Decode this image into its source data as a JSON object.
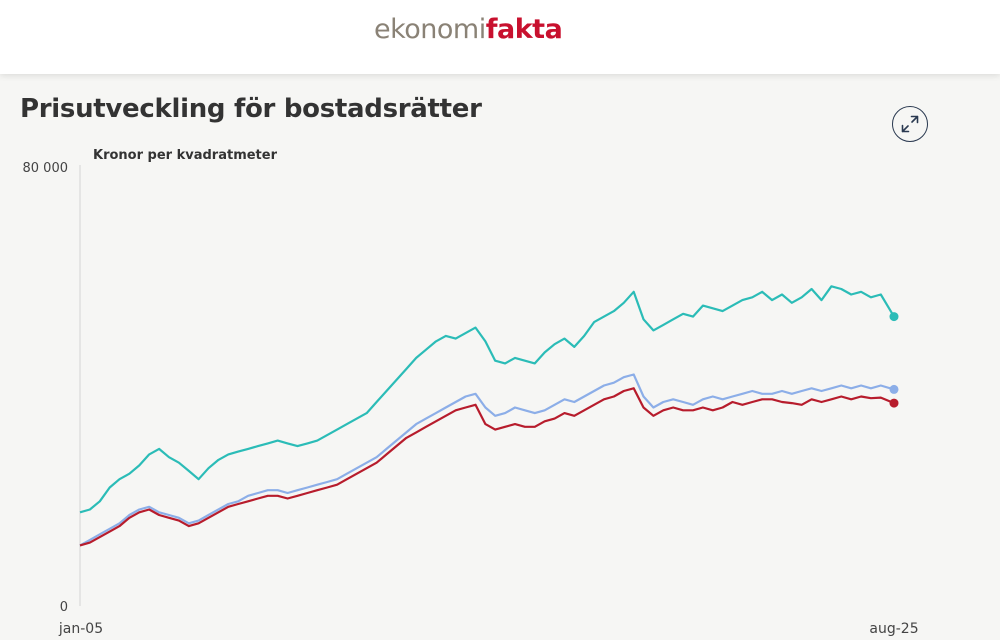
{
  "header": {
    "logo_part1": "ekonomi",
    "logo_part2": "fakta",
    "brand_color": "#c8102e",
    "logo_grey": "#8a8276"
  },
  "page": {
    "title": "Prisutveckling för bostadsrätter",
    "expand_icon": "expand-arrows-icon"
  },
  "chart_data": {
    "type": "line",
    "title": "Prisutveckling för bostadsrätter",
    "ylabel": "Kronor per kvadratmeter",
    "xlabel": "",
    "ylim": [
      0,
      80000
    ],
    "y_ticks": [
      "0",
      "80 000"
    ],
    "x_ticks": [
      "jan-05",
      "aug-25"
    ],
    "x_start": "2005-01",
    "x_end": "2025-08",
    "grid": false,
    "legend": "none",
    "series": [
      {
        "color": "#2bbcb7",
        "values": [
          [
            2005.0,
            17000
          ],
          [
            2005.25,
            17500
          ],
          [
            2005.5,
            19000
          ],
          [
            2005.75,
            21500
          ],
          [
            2006.0,
            23000
          ],
          [
            2006.25,
            24000
          ],
          [
            2006.5,
            25500
          ],
          [
            2006.75,
            27500
          ],
          [
            2007.0,
            28500
          ],
          [
            2007.25,
            27000
          ],
          [
            2007.5,
            26000
          ],
          [
            2007.75,
            24500
          ],
          [
            2008.0,
            23000
          ],
          [
            2008.25,
            25000
          ],
          [
            2008.5,
            26500
          ],
          [
            2008.75,
            27500
          ],
          [
            2009.0,
            28000
          ],
          [
            2009.25,
            28500
          ],
          [
            2009.5,
            29000
          ],
          [
            2009.75,
            29500
          ],
          [
            2010.0,
            30000
          ],
          [
            2010.25,
            29500
          ],
          [
            2010.5,
            29000
          ],
          [
            2010.75,
            29500
          ],
          [
            2011.0,
            30000
          ],
          [
            2011.25,
            31000
          ],
          [
            2011.5,
            32000
          ],
          [
            2011.75,
            33000
          ],
          [
            2012.0,
            34000
          ],
          [
            2012.25,
            35000
          ],
          [
            2012.5,
            37000
          ],
          [
            2012.75,
            39000
          ],
          [
            2013.0,
            41000
          ],
          [
            2013.25,
            43000
          ],
          [
            2013.5,
            45000
          ],
          [
            2013.75,
            46500
          ],
          [
            2014.0,
            48000
          ],
          [
            2014.25,
            49000
          ],
          [
            2014.5,
            48500
          ],
          [
            2014.75,
            49500
          ],
          [
            2015.0,
            50500
          ],
          [
            2015.25,
            48000
          ],
          [
            2015.5,
            44500
          ],
          [
            2015.75,
            44000
          ],
          [
            2016.0,
            45000
          ],
          [
            2016.25,
            44500
          ],
          [
            2016.5,
            44000
          ],
          [
            2016.75,
            46000
          ],
          [
            2017.0,
            47500
          ],
          [
            2017.25,
            48500
          ],
          [
            2017.5,
            47000
          ],
          [
            2017.75,
            49000
          ],
          [
            2018.0,
            51500
          ],
          [
            2018.25,
            52500
          ],
          [
            2018.5,
            53500
          ],
          [
            2018.75,
            55000
          ],
          [
            2019.0,
            57000
          ],
          [
            2019.25,
            52000
          ],
          [
            2019.5,
            50000
          ],
          [
            2019.75,
            51000
          ],
          [
            2020.0,
            52000
          ],
          [
            2020.25,
            53000
          ],
          [
            2020.5,
            52500
          ],
          [
            2020.75,
            54500
          ],
          [
            2021.0,
            54000
          ],
          [
            2021.25,
            53500
          ],
          [
            2021.5,
            54500
          ],
          [
            2021.75,
            55500
          ],
          [
            2022.0,
            56000
          ],
          [
            2022.25,
            57000
          ],
          [
            2022.5,
            55500
          ],
          [
            2022.75,
            56500
          ],
          [
            2023.0,
            55000
          ],
          [
            2023.25,
            56000
          ],
          [
            2023.5,
            57500
          ],
          [
            2023.75,
            55500
          ],
          [
            2024.0,
            58000
          ],
          [
            2024.25,
            57500
          ],
          [
            2024.5,
            56500
          ],
          [
            2024.75,
            57000
          ],
          [
            2025.0,
            56000
          ],
          [
            2025.25,
            56500
          ],
          [
            2025.583,
            52500
          ]
        ]
      },
      {
        "color": "#8caee8",
        "values": [
          [
            2005.0,
            11000
          ],
          [
            2005.25,
            12000
          ],
          [
            2005.5,
            13000
          ],
          [
            2005.75,
            14000
          ],
          [
            2006.0,
            15000
          ],
          [
            2006.25,
            16500
          ],
          [
            2006.5,
            17500
          ],
          [
            2006.75,
            18000
          ],
          [
            2007.0,
            17000
          ],
          [
            2007.25,
            16500
          ],
          [
            2007.5,
            16000
          ],
          [
            2007.75,
            15000
          ],
          [
            2008.0,
            15500
          ],
          [
            2008.25,
            16500
          ],
          [
            2008.5,
            17500
          ],
          [
            2008.75,
            18500
          ],
          [
            2009.0,
            19000
          ],
          [
            2009.25,
            20000
          ],
          [
            2009.5,
            20500
          ],
          [
            2009.75,
            21000
          ],
          [
            2010.0,
            21000
          ],
          [
            2010.25,
            20500
          ],
          [
            2010.5,
            21000
          ],
          [
            2010.75,
            21500
          ],
          [
            2011.0,
            22000
          ],
          [
            2011.25,
            22500
          ],
          [
            2011.5,
            23000
          ],
          [
            2011.75,
            24000
          ],
          [
            2012.0,
            25000
          ],
          [
            2012.25,
            26000
          ],
          [
            2012.5,
            27000
          ],
          [
            2012.75,
            28500
          ],
          [
            2013.0,
            30000
          ],
          [
            2013.25,
            31500
          ],
          [
            2013.5,
            33000
          ],
          [
            2013.75,
            34000
          ],
          [
            2014.0,
            35000
          ],
          [
            2014.25,
            36000
          ],
          [
            2014.5,
            37000
          ],
          [
            2014.75,
            38000
          ],
          [
            2015.0,
            38500
          ],
          [
            2015.25,
            36000
          ],
          [
            2015.5,
            34500
          ],
          [
            2015.75,
            35000
          ],
          [
            2016.0,
            36000
          ],
          [
            2016.25,
            35500
          ],
          [
            2016.5,
            35000
          ],
          [
            2016.75,
            35500
          ],
          [
            2017.0,
            36500
          ],
          [
            2017.25,
            37500
          ],
          [
            2017.5,
            37000
          ],
          [
            2017.75,
            38000
          ],
          [
            2018.0,
            39000
          ],
          [
            2018.25,
            40000
          ],
          [
            2018.5,
            40500
          ],
          [
            2018.75,
            41500
          ],
          [
            2019.0,
            42000
          ],
          [
            2019.25,
            38000
          ],
          [
            2019.5,
            36000
          ],
          [
            2019.75,
            37000
          ],
          [
            2020.0,
            37500
          ],
          [
            2020.25,
            37000
          ],
          [
            2020.5,
            36500
          ],
          [
            2020.75,
            37500
          ],
          [
            2021.0,
            38000
          ],
          [
            2021.25,
            37500
          ],
          [
            2021.5,
            38000
          ],
          [
            2021.75,
            38500
          ],
          [
            2022.0,
            39000
          ],
          [
            2022.25,
            38500
          ],
          [
            2022.5,
            38500
          ],
          [
            2022.75,
            39000
          ],
          [
            2023.0,
            38500
          ],
          [
            2023.25,
            39000
          ],
          [
            2023.5,
            39500
          ],
          [
            2023.75,
            39000
          ],
          [
            2024.0,
            39500
          ],
          [
            2024.25,
            40000
          ],
          [
            2024.5,
            39500
          ],
          [
            2024.75,
            40000
          ],
          [
            2025.0,
            39500
          ],
          [
            2025.25,
            40000
          ],
          [
            2025.583,
            39300
          ]
        ]
      },
      {
        "color": "#b71c2c",
        "values": [
          [
            2005.0,
            11000
          ],
          [
            2005.25,
            11500
          ],
          [
            2005.5,
            12500
          ],
          [
            2005.75,
            13500
          ],
          [
            2006.0,
            14500
          ],
          [
            2006.25,
            16000
          ],
          [
            2006.5,
            17000
          ],
          [
            2006.75,
            17500
          ],
          [
            2007.0,
            16500
          ],
          [
            2007.25,
            16000
          ],
          [
            2007.5,
            15500
          ],
          [
            2007.75,
            14500
          ],
          [
            2008.0,
            15000
          ],
          [
            2008.25,
            16000
          ],
          [
            2008.5,
            17000
          ],
          [
            2008.75,
            18000
          ],
          [
            2009.0,
            18500
          ],
          [
            2009.25,
            19000
          ],
          [
            2009.5,
            19500
          ],
          [
            2009.75,
            20000
          ],
          [
            2010.0,
            20000
          ],
          [
            2010.25,
            19500
          ],
          [
            2010.5,
            20000
          ],
          [
            2010.75,
            20500
          ],
          [
            2011.0,
            21000
          ],
          [
            2011.25,
            21500
          ],
          [
            2011.5,
            22000
          ],
          [
            2011.75,
            23000
          ],
          [
            2012.0,
            24000
          ],
          [
            2012.25,
            25000
          ],
          [
            2012.5,
            26000
          ],
          [
            2012.75,
            27500
          ],
          [
            2013.0,
            29000
          ],
          [
            2013.25,
            30500
          ],
          [
            2013.5,
            31500
          ],
          [
            2013.75,
            32500
          ],
          [
            2014.0,
            33500
          ],
          [
            2014.25,
            34500
          ],
          [
            2014.5,
            35500
          ],
          [
            2014.75,
            36000
          ],
          [
            2015.0,
            36500
          ],
          [
            2015.25,
            33000
          ],
          [
            2015.5,
            32000
          ],
          [
            2015.75,
            32500
          ],
          [
            2016.0,
            33000
          ],
          [
            2016.25,
            32500
          ],
          [
            2016.5,
            32500
          ],
          [
            2016.75,
            33500
          ],
          [
            2017.0,
            34000
          ],
          [
            2017.25,
            35000
          ],
          [
            2017.5,
            34500
          ],
          [
            2017.75,
            35500
          ],
          [
            2018.0,
            36500
          ],
          [
            2018.25,
            37500
          ],
          [
            2018.5,
            38000
          ],
          [
            2018.75,
            39000
          ],
          [
            2019.0,
            39500
          ],
          [
            2019.25,
            36000
          ],
          [
            2019.5,
            34500
          ],
          [
            2019.75,
            35500
          ],
          [
            2020.0,
            36000
          ],
          [
            2020.25,
            35500
          ],
          [
            2020.5,
            35500
          ],
          [
            2020.75,
            36000
          ],
          [
            2021.0,
            35500
          ],
          [
            2021.25,
            36000
          ],
          [
            2021.5,
            37000
          ],
          [
            2021.75,
            36500
          ],
          [
            2022.0,
            37000
          ],
          [
            2022.25,
            37500
          ],
          [
            2022.5,
            37500
          ],
          [
            2022.75,
            37000
          ],
          [
            2023.0,
            36800
          ],
          [
            2023.25,
            36500
          ],
          [
            2023.5,
            37500
          ],
          [
            2023.75,
            37000
          ],
          [
            2024.0,
            37500
          ],
          [
            2024.25,
            38000
          ],
          [
            2024.5,
            37500
          ],
          [
            2024.75,
            38000
          ],
          [
            2025.0,
            37700
          ],
          [
            2025.25,
            37800
          ],
          [
            2025.583,
            36800
          ]
        ]
      }
    ]
  }
}
